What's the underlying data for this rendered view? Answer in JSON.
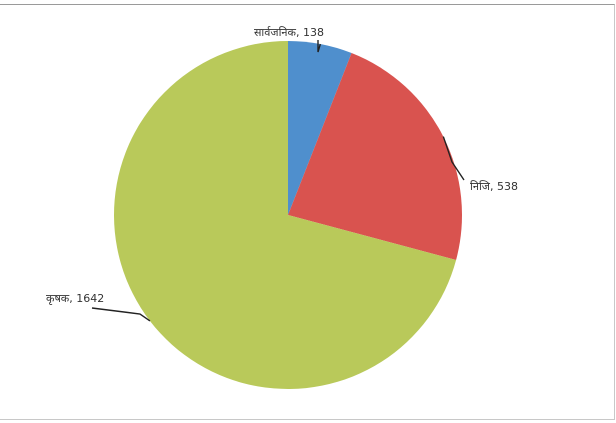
{
  "chart_data": {
    "type": "pie",
    "title": "",
    "labels": [
      "सार्वजनिक",
      "निजि",
      "कृषक"
    ],
    "values": [
      138,
      538,
      1642
    ],
    "colors": [
      "#4f8fcd",
      "#d9534f",
      "#b9c95a"
    ],
    "data_labels": [
      "सार्वजनिक, 138",
      "निजि, 538",
      "कृषक, 1642"
    ],
    "start_angle": "top",
    "direction": "clockwise",
    "legend": "none"
  }
}
